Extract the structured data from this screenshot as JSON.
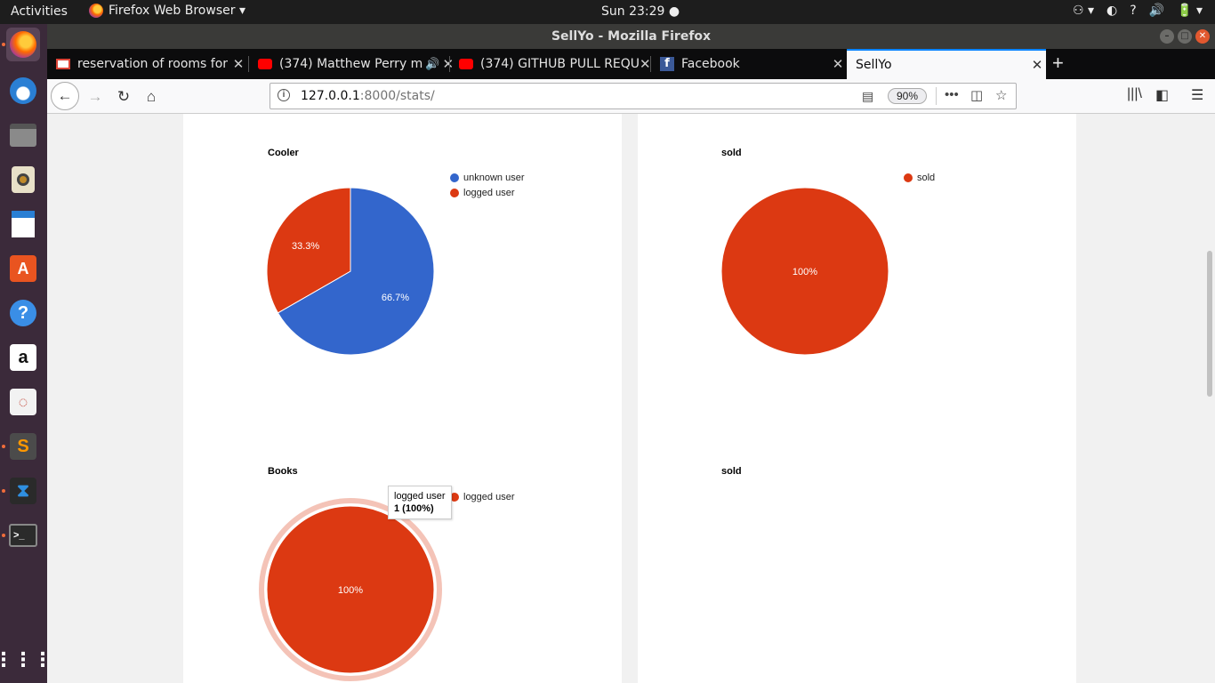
{
  "topbar": {
    "activities": "Activities",
    "app_menu": "Firefox Web Browser ▾",
    "clock": "Sun 23:29 ●",
    "tray": [
      "⚇ ▾",
      "◐",
      "?",
      "🔊",
      "🔋 ▾"
    ]
  },
  "window": {
    "title": "SellYo - Mozilla Firefox"
  },
  "tabs": [
    {
      "label": "reservation of rooms for",
      "favicon": "gmail-icon",
      "color": "#db4437"
    },
    {
      "label": "(374) Matthew Perry m",
      "favicon": "youtube-icon",
      "color": "#ff0000",
      "audio": "🔊"
    },
    {
      "label": "(374) GITHUB PULL REQU",
      "favicon": "youtube-icon",
      "color": "#ff0000"
    },
    {
      "label": "Facebook",
      "favicon": "facebook-icon",
      "color": "#3b5998"
    },
    {
      "label": "SellYo",
      "favicon": "",
      "active": true
    }
  ],
  "toolbar": {
    "url_host": "127.0.0.1",
    "url_path": ":8000/stats/",
    "zoom": "90%"
  },
  "charts": [
    {
      "title": "Cooler",
      "legend": [
        {
          "label": "unknown user",
          "color": "#3366cc"
        },
        {
          "label": "logged user",
          "color": "#dc3912"
        }
      ],
      "slice_labels": [
        "66.7%",
        "33.3%"
      ]
    },
    {
      "title": "sold",
      "legend": [
        {
          "label": "sold",
          "color": "#dc3912"
        }
      ],
      "slice_labels": [
        "100%"
      ]
    },
    {
      "title": "Books",
      "legend": [
        {
          "label": "logged user",
          "color": "#dc3912"
        }
      ],
      "slice_labels": [
        "100%"
      ],
      "tooltip": {
        "label": "logged user",
        "value": "1 (100%)"
      }
    },
    {
      "title": "sold",
      "legend": [],
      "slice_labels": []
    }
  ],
  "chart_data": [
    {
      "type": "pie",
      "title": "Cooler",
      "categories": [
        "unknown user",
        "logged user"
      ],
      "values": [
        66.7,
        33.3
      ],
      "colors": [
        "#3366cc",
        "#dc3912"
      ],
      "legend": "right"
    },
    {
      "type": "pie",
      "title": "sold",
      "categories": [
        "sold"
      ],
      "values": [
        100
      ],
      "colors": [
        "#dc3912"
      ],
      "legend": "right"
    },
    {
      "type": "pie",
      "title": "Books",
      "categories": [
        "logged user"
      ],
      "values": [
        100
      ],
      "colors": [
        "#dc3912"
      ],
      "legend": "right"
    },
    {
      "type": "pie",
      "title": "sold",
      "categories": [],
      "values": []
    }
  ]
}
